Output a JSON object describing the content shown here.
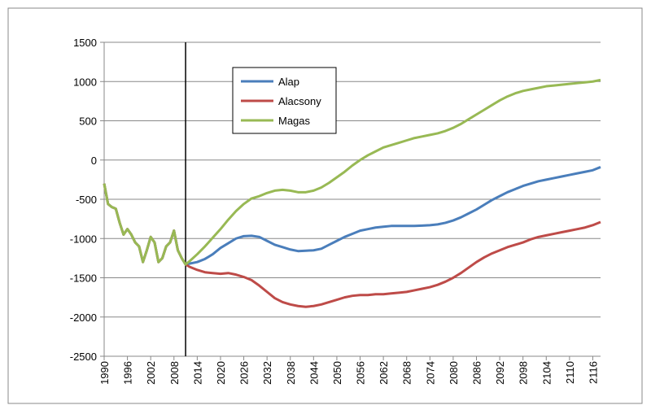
{
  "chart_data": {
    "type": "line",
    "x": [
      1990,
      1991,
      1992,
      1993,
      1994,
      1995,
      1996,
      1997,
      1998,
      1999,
      2000,
      2001,
      2002,
      2003,
      2004,
      2005,
      2006,
      2007,
      2008,
      2009,
      2010,
      2011,
      2012,
      2014,
      2016,
      2018,
      2020,
      2022,
      2024,
      2026,
      2028,
      2030,
      2032,
      2034,
      2036,
      2038,
      2040,
      2042,
      2044,
      2046,
      2048,
      2050,
      2052,
      2054,
      2056,
      2058,
      2060,
      2062,
      2064,
      2066,
      2068,
      2070,
      2072,
      2074,
      2076,
      2078,
      2080,
      2082,
      2084,
      2086,
      2088,
      2090,
      2092,
      2094,
      2096,
      2098,
      2100,
      2102,
      2104,
      2106,
      2108,
      2110,
      2112,
      2114,
      2116,
      2118
    ],
    "series": [
      {
        "name": "Alap",
        "color": "#4a7ebb",
        "values": [
          -300,
          -560,
          -600,
          -620,
          -800,
          -950,
          -880,
          -950,
          -1050,
          -1100,
          -1300,
          -1150,
          -980,
          -1050,
          -1300,
          -1250,
          -1100,
          -1050,
          -900,
          -1150,
          -1250,
          -1330,
          -1320,
          -1300,
          -1260,
          -1200,
          -1120,
          -1060,
          -1000,
          -970,
          -965,
          -980,
          -1030,
          -1080,
          -1110,
          -1140,
          -1160,
          -1155,
          -1150,
          -1130,
          -1080,
          -1030,
          -980,
          -940,
          -900,
          -880,
          -860,
          -850,
          -840,
          -840,
          -840,
          -840,
          -835,
          -830,
          -820,
          -800,
          -770,
          -730,
          -680,
          -630,
          -570,
          -510,
          -460,
          -410,
          -370,
          -330,
          -300,
          -270,
          -250,
          -230,
          -210,
          -190,
          -170,
          -150,
          -130,
          -90
        ]
      },
      {
        "name": "Alacsony",
        "color": "#be4b48",
        "values": [
          -300,
          -560,
          -600,
          -620,
          -800,
          -950,
          -880,
          -950,
          -1050,
          -1100,
          -1300,
          -1150,
          -980,
          -1050,
          -1300,
          -1250,
          -1100,
          -1050,
          -900,
          -1150,
          -1250,
          -1330,
          -1360,
          -1400,
          -1430,
          -1440,
          -1450,
          -1440,
          -1460,
          -1490,
          -1530,
          -1600,
          -1680,
          -1760,
          -1810,
          -1840,
          -1860,
          -1870,
          -1860,
          -1840,
          -1810,
          -1780,
          -1750,
          -1730,
          -1720,
          -1720,
          -1710,
          -1710,
          -1700,
          -1690,
          -1680,
          -1660,
          -1640,
          -1620,
          -1590,
          -1550,
          -1500,
          -1440,
          -1370,
          -1300,
          -1240,
          -1190,
          -1150,
          -1110,
          -1080,
          -1050,
          -1010,
          -980,
          -960,
          -940,
          -920,
          -900,
          -880,
          -860,
          -830,
          -790
        ]
      },
      {
        "name": "Magas",
        "color": "#98b954",
        "values": [
          -300,
          -560,
          -600,
          -620,
          -800,
          -950,
          -880,
          -950,
          -1050,
          -1100,
          -1300,
          -1150,
          -980,
          -1050,
          -1300,
          -1250,
          -1100,
          -1050,
          -900,
          -1150,
          -1250,
          -1330,
          -1290,
          -1200,
          -1100,
          -990,
          -880,
          -760,
          -650,
          -560,
          -490,
          -460,
          -420,
          -390,
          -380,
          -390,
          -410,
          -410,
          -390,
          -350,
          -290,
          -220,
          -150,
          -70,
          0,
          60,
          110,
          160,
          190,
          220,
          250,
          280,
          300,
          320,
          340,
          370,
          410,
          460,
          520,
          580,
          640,
          700,
          760,
          810,
          850,
          880,
          900,
          920,
          940,
          950,
          960,
          970,
          980,
          990,
          1000,
          1020
        ]
      }
    ],
    "xlim": [
      1990,
      2118
    ],
    "xticks": [
      1990,
      1996,
      2002,
      2008,
      2014,
      2020,
      2026,
      2032,
      2038,
      2044,
      2050,
      2056,
      2062,
      2068,
      2074,
      2080,
      2086,
      2092,
      2098,
      2104,
      2110,
      2116
    ],
    "ylim": [
      -2500,
      1500
    ],
    "yticks": [
      -2500,
      -2000,
      -1500,
      -1000,
      -500,
      0,
      500,
      1000,
      1500
    ],
    "grid": true,
    "vline_x": 2011,
    "legend": "top-center"
  }
}
